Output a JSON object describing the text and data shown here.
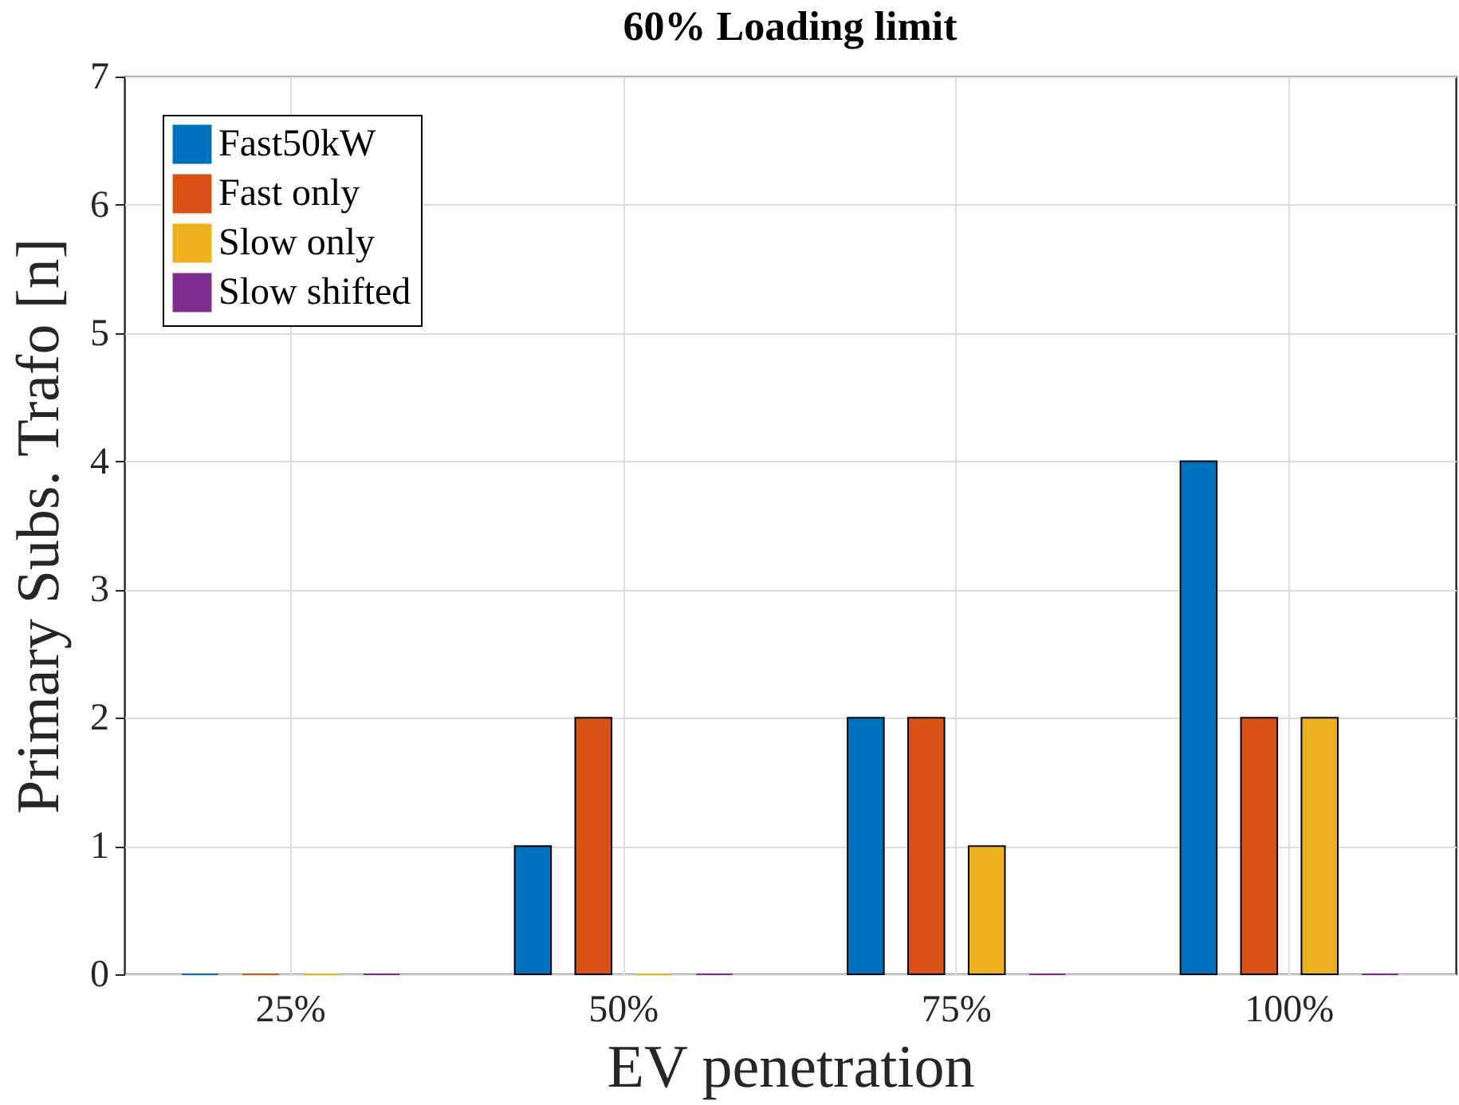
{
  "chart_data": {
    "type": "bar",
    "title": "60% Loading limit",
    "xlabel": "EV penetration",
    "ylabel": "Primary Subs. Trafo [n]",
    "categories": [
      "25%",
      "50%",
      "75%",
      "100%"
    ],
    "series": [
      {
        "name": "Fast50kW",
        "color": "#0072bd",
        "values": [
          0,
          1,
          2,
          4
        ]
      },
      {
        "name": "Fast only",
        "color": "#d95319",
        "values": [
          0,
          2,
          2,
          2
        ]
      },
      {
        "name": "Slow only",
        "color": "#edb120",
        "values": [
          0,
          0,
          1,
          2
        ]
      },
      {
        "name": "Slow shifted",
        "color": "#7e2f8e",
        "values": [
          0,
          0,
          0,
          0
        ]
      }
    ],
    "ylim": [
      0,
      7
    ],
    "yticks": [
      0,
      1,
      2,
      3,
      4,
      5,
      6,
      7
    ],
    "grid": true,
    "legend": "top left"
  }
}
